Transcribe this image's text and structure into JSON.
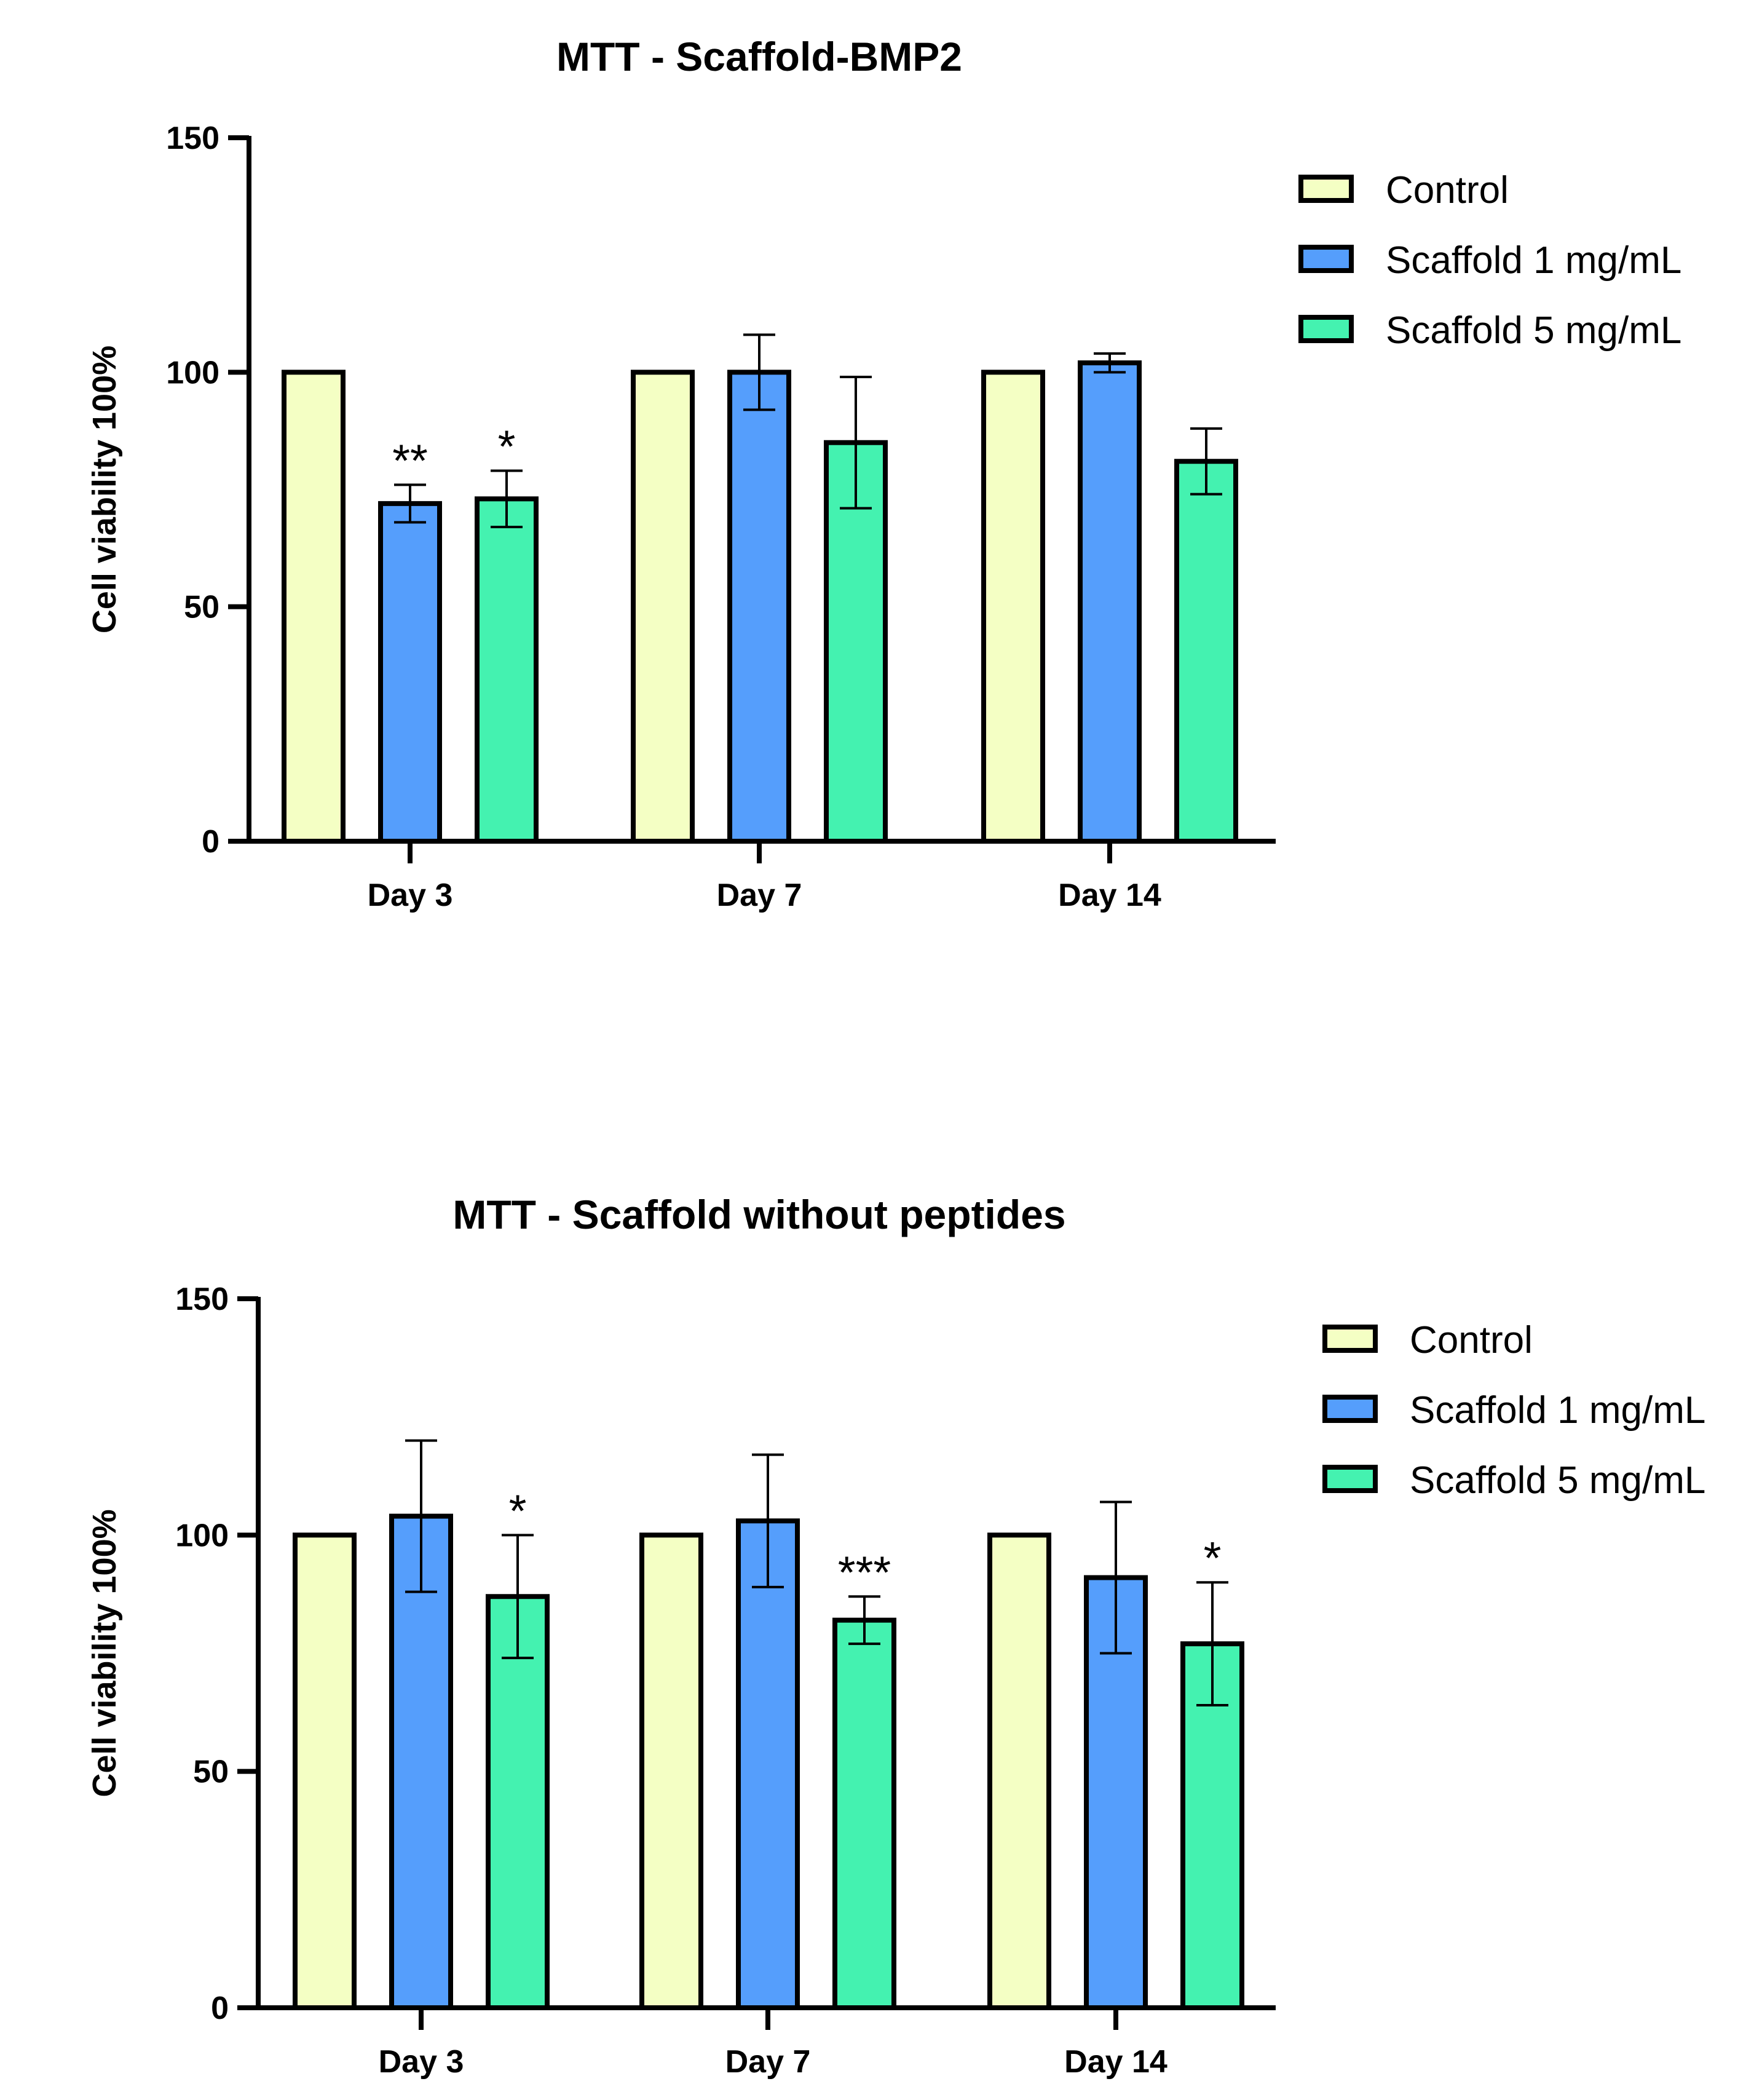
{
  "charts": [
    {
      "chart_data": {
        "type": "bar",
        "title": "MTT - Scaffold-BMP2",
        "ylabel": "Cell viability 100%",
        "xlabel": "",
        "ylim": [
          0,
          150
        ],
        "yticks": [
          "0",
          "50",
          "100",
          "150"
        ],
        "categories": [
          "Day 3",
          "Day 7",
          "Day 14"
        ],
        "grid": false,
        "legend_placement": "top-right",
        "series": [
          {
            "name": "Control",
            "color": "#F4FFC4",
            "values": [
              100,
              100,
              100
            ],
            "errors": [
              0,
              0,
              0
            ],
            "significance": [
              "",
              "",
              ""
            ]
          },
          {
            "name": "Scaffold 1 mg/mL",
            "color": "#559EFC",
            "values": [
              72,
              100,
              102
            ],
            "errors": [
              4,
              8,
              2
            ],
            "significance": [
              "**",
              "",
              ""
            ]
          },
          {
            "name": "Scaffold 5 mg/mL",
            "color": "#44F2B0",
            "values": [
              73,
              85,
              81
            ],
            "errors": [
              6,
              14,
              7
            ],
            "significance": [
              "*",
              "",
              ""
            ]
          }
        ]
      }
    },
    {
      "chart_data": {
        "type": "bar",
        "title": "MTT - Scaffold without peptides",
        "ylabel": "Cell viability 100%",
        "xlabel": "",
        "ylim": [
          0,
          150
        ],
        "yticks": [
          "0",
          "50",
          "100",
          "150"
        ],
        "categories": [
          "Day 3",
          "Day 7",
          "Day 14"
        ],
        "grid": false,
        "legend_placement": "top-right",
        "series": [
          {
            "name": "Control",
            "color": "#F4FFC4",
            "values": [
              100,
              100,
              100
            ],
            "errors": [
              0,
              0,
              0
            ],
            "significance": [
              "",
              "",
              ""
            ]
          },
          {
            "name": "Scaffold 1 mg/mL",
            "color": "#559EFC",
            "values": [
              104,
              103,
              91
            ],
            "errors": [
              16,
              14,
              16
            ],
            "significance": [
              "",
              "",
              ""
            ]
          },
          {
            "name": "Scaffold 5 mg/mL",
            "color": "#44F2B0",
            "values": [
              87,
              82,
              77
            ],
            "errors": [
              13,
              5,
              13
            ],
            "significance": [
              "*",
              "***",
              "*"
            ]
          }
        ]
      }
    }
  ]
}
